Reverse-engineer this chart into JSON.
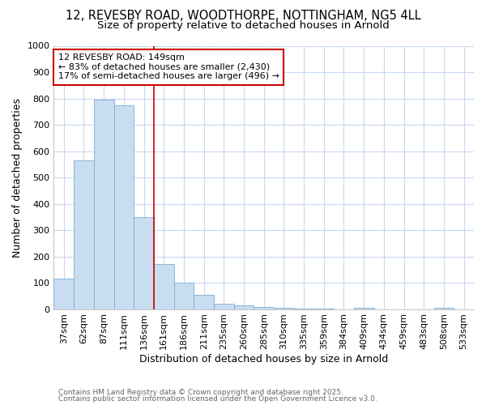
{
  "title1": "12, REVESBY ROAD, WOODTHORPE, NOTTINGHAM, NG5 4LL",
  "title2": "Size of property relative to detached houses in Arnold",
  "xlabel": "Distribution of detached houses by size in Arnold",
  "ylabel": "Number of detached properties",
  "categories": [
    "37sqm",
    "62sqm",
    "87sqm",
    "111sqm",
    "136sqm",
    "161sqm",
    "186sqm",
    "211sqm",
    "235sqm",
    "260sqm",
    "285sqm",
    "310sqm",
    "335sqm",
    "359sqm",
    "384sqm",
    "409sqm",
    "434sqm",
    "459sqm",
    "483sqm",
    "508sqm",
    "533sqm"
  ],
  "values": [
    115,
    565,
    795,
    775,
    350,
    170,
    100,
    55,
    20,
    13,
    8,
    5,
    3,
    1,
    0,
    5,
    0,
    0,
    0,
    5,
    0
  ],
  "bar_color": "#c8ddf0",
  "bar_edge_color": "#7aadd4",
  "vline_x_index": 5,
  "vline_color": "#cc0000",
  "annotation_text": "12 REVESBY ROAD: 149sqm\n← 83% of detached houses are smaller (2,430)\n17% of semi-detached houses are larger (496) →",
  "annotation_box_color": "#ffffff",
  "annotation_box_edge": "#cc0000",
  "footnote1": "Contains HM Land Registry data © Crown copyright and database right 2025.",
  "footnote2": "Contains public sector information licensed under the Open Government Licence v3.0.",
  "ylim": [
    0,
    1000
  ],
  "yticks": [
    0,
    100,
    200,
    300,
    400,
    500,
    600,
    700,
    800,
    900,
    1000
  ],
  "bg_color": "#ffffff",
  "plot_bg_color": "#ffffff",
  "grid_color": "#c8d8f0",
  "title_fontsize": 10.5,
  "subtitle_fontsize": 9.5,
  "ylabel_fontsize": 9,
  "xlabel_fontsize": 9
}
